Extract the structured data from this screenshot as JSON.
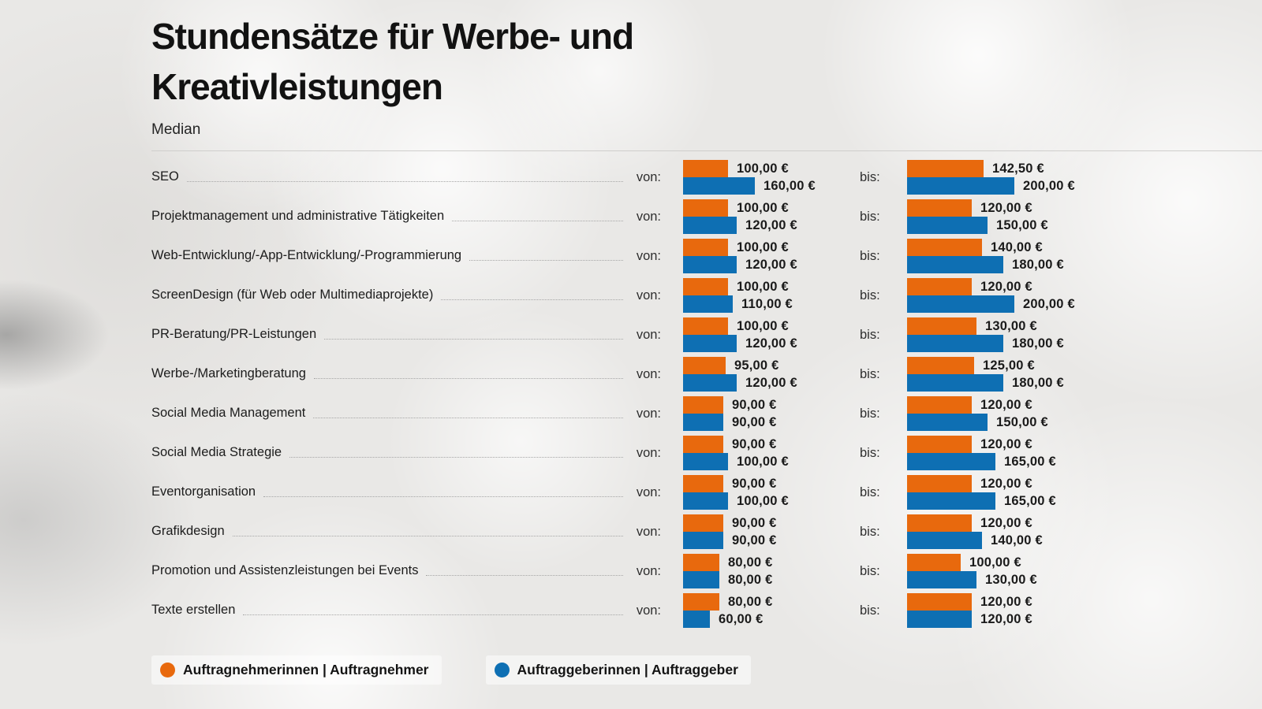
{
  "header": {
    "title_line1": "Stundensätze für Werbe- und",
    "title_line2": "Kreativleistungen",
    "subtitle": "Median"
  },
  "labels": {
    "von": "von:",
    "bis": "bis:"
  },
  "colors": {
    "auftragnehmer": "#E8690D",
    "auftraggeber": "#0E6FB3"
  },
  "legend": {
    "items": [
      {
        "key": "auftragnehmer",
        "label": "Auftragnehmerinnen | Auftragnehmer",
        "color": "#E8690D"
      },
      {
        "key": "auftraggeber",
        "label": "Auftraggeberinnen | Auftraggeber",
        "color": "#0E6FB3"
      }
    ]
  },
  "chart_data": {
    "type": "bar",
    "orientation": "horizontal",
    "title": "Stundensätze für Werbe- und Kreativleistungen",
    "subtitle": "Median",
    "unit": "EUR pro Stunde",
    "value_axis_max": 200,
    "groups": [
      "von",
      "bis"
    ],
    "series_names": [
      "Auftragnehmerinnen | Auftragnehmer",
      "Auftraggeberinnen | Auftraggeber"
    ],
    "rows": [
      {
        "category": "SEO",
        "von": {
          "auftragnehmer": 100.0,
          "auftraggeber": 160.0,
          "auftragnehmer_label": "100,00 €",
          "auftraggeber_label": "160,00 €"
        },
        "bis": {
          "auftragnehmer": 142.5,
          "auftraggeber": 200.0,
          "auftragnehmer_label": "142,50 €",
          "auftraggeber_label": "200,00 €"
        }
      },
      {
        "category": "Projektmanagement und administrative Tätigkeiten",
        "von": {
          "auftragnehmer": 100.0,
          "auftraggeber": 120.0,
          "auftragnehmer_label": "100,00 €",
          "auftraggeber_label": "120,00 €"
        },
        "bis": {
          "auftragnehmer": 120.0,
          "auftraggeber": 150.0,
          "auftragnehmer_label": "120,00 €",
          "auftraggeber_label": "150,00 €"
        }
      },
      {
        "category": "Web-Entwicklung/-App-Entwicklung/-Programmierung",
        "von": {
          "auftragnehmer": 100.0,
          "auftraggeber": 120.0,
          "auftragnehmer_label": "100,00 €",
          "auftraggeber_label": "120,00 €"
        },
        "bis": {
          "auftragnehmer": 140.0,
          "auftraggeber": 180.0,
          "auftragnehmer_label": "140,00 €",
          "auftraggeber_label": "180,00 €"
        }
      },
      {
        "category": "ScreenDesign (für Web oder Multimediaprojekte)",
        "von": {
          "auftragnehmer": 100.0,
          "auftraggeber": 110.0,
          "auftragnehmer_label": "100,00 €",
          "auftraggeber_label": "110,00 €"
        },
        "bis": {
          "auftragnehmer": 120.0,
          "auftraggeber": 200.0,
          "auftragnehmer_label": "120,00 €",
          "auftraggeber_label": "200,00 €"
        }
      },
      {
        "category": "PR-Beratung/PR-Leistungen",
        "von": {
          "auftragnehmer": 100.0,
          "auftraggeber": 120.0,
          "auftragnehmer_label": "100,00 €",
          "auftraggeber_label": "120,00 €"
        },
        "bis": {
          "auftragnehmer": 130.0,
          "auftraggeber": 180.0,
          "auftragnehmer_label": "130,00 €",
          "auftraggeber_label": "180,00 €"
        }
      },
      {
        "category": "Werbe-/Marketingberatung",
        "von": {
          "auftragnehmer": 95.0,
          "auftraggeber": 120.0,
          "auftragnehmer_label": "95,00 €",
          "auftraggeber_label": "120,00 €"
        },
        "bis": {
          "auftragnehmer": 125.0,
          "auftraggeber": 180.0,
          "auftragnehmer_label": "125,00 €",
          "auftraggeber_label": "180,00 €"
        }
      },
      {
        "category": "Social Media Management",
        "von": {
          "auftragnehmer": 90.0,
          "auftraggeber": 90.0,
          "auftragnehmer_label": "90,00 €",
          "auftraggeber_label": "90,00 €"
        },
        "bis": {
          "auftragnehmer": 120.0,
          "auftraggeber": 150.0,
          "auftragnehmer_label": "120,00 €",
          "auftraggeber_label": "150,00 €"
        }
      },
      {
        "category": "Social Media Strategie",
        "von": {
          "auftragnehmer": 90.0,
          "auftraggeber": 100.0,
          "auftragnehmer_label": "90,00 €",
          "auftraggeber_label": "100,00 €"
        },
        "bis": {
          "auftragnehmer": 120.0,
          "auftraggeber": 165.0,
          "auftragnehmer_label": "120,00 €",
          "auftraggeber_label": "165,00 €"
        }
      },
      {
        "category": "Eventorganisation",
        "von": {
          "auftragnehmer": 90.0,
          "auftraggeber": 100.0,
          "auftragnehmer_label": "90,00 €",
          "auftraggeber_label": "100,00 €"
        },
        "bis": {
          "auftragnehmer": 120.0,
          "auftraggeber": 165.0,
          "auftragnehmer_label": "120,00 €",
          "auftraggeber_label": "165,00 €"
        }
      },
      {
        "category": "Grafikdesign",
        "von": {
          "auftragnehmer": 90.0,
          "auftraggeber": 90.0,
          "auftragnehmer_label": "90,00 €",
          "auftraggeber_label": "90,00 €"
        },
        "bis": {
          "auftragnehmer": 120.0,
          "auftraggeber": 140.0,
          "auftragnehmer_label": "120,00 €",
          "auftraggeber_label": "140,00 €"
        }
      },
      {
        "category": "Promotion und Assistenzleistungen bei Events",
        "von": {
          "auftragnehmer": 80.0,
          "auftraggeber": 80.0,
          "auftragnehmer_label": "80,00 €",
          "auftraggeber_label": "80,00 €"
        },
        "bis": {
          "auftragnehmer": 100.0,
          "auftraggeber": 130.0,
          "auftragnehmer_label": "100,00 €",
          "auftraggeber_label": "130,00 €"
        }
      },
      {
        "category": "Texte erstellen",
        "von": {
          "auftragnehmer": 80.0,
          "auftraggeber": 60.0,
          "auftragnehmer_label": "80,00 €",
          "auftraggeber_label": "60,00 €"
        },
        "bis": {
          "auftragnehmer": 120.0,
          "auftraggeber": 120.0,
          "auftragnehmer_label": "120,00 €",
          "auftraggeber_label": "120,00 €"
        }
      }
    ]
  }
}
